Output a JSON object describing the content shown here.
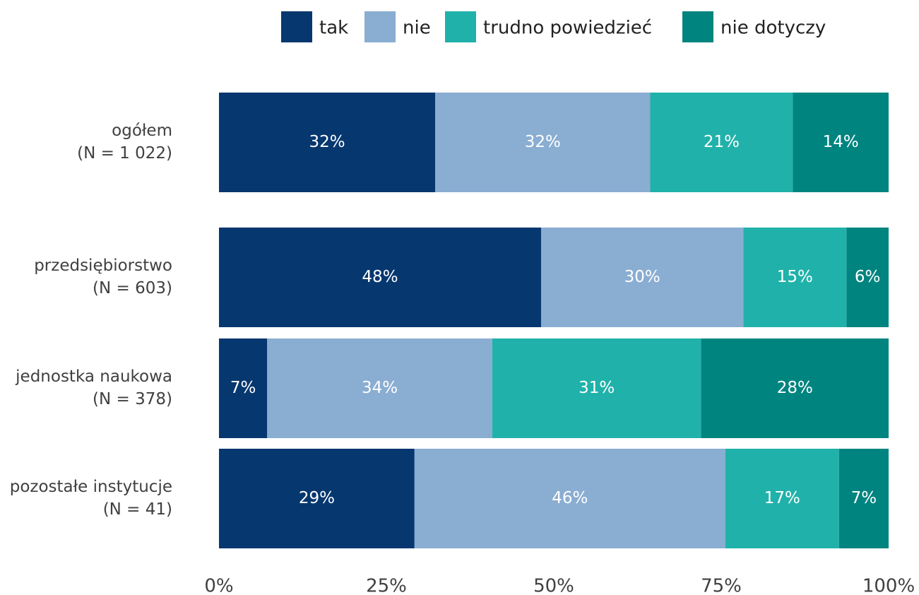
{
  "chart_data": {
    "type": "stacked_bar_horizontal",
    "categories": [
      "ogółem",
      "przedsiębiorstwo",
      "jednostka naukowa",
      "pozostałe instytucje"
    ],
    "sample_sizes": [
      "(N = 1 022)",
      "(N = 603)",
      "(N = 378)",
      "(N = 41)"
    ],
    "series": [
      {
        "name": "tak",
        "color": "#06376f",
        "values": [
          32.3,
          48.1,
          7.2,
          29.2
        ],
        "value_labels": [
          "32%",
          "48%",
          "7%",
          "29%"
        ]
      },
      {
        "name": "nie",
        "color": "#8aadd2",
        "values": [
          32.1,
          30.2,
          33.6,
          46.4
        ],
        "value_labels": [
          "32%",
          "30%",
          "34%",
          "46%"
        ]
      },
      {
        "name": "trudno powiedzieć",
        "color": "#20b2aa",
        "values": [
          21.3,
          15.4,
          31.2,
          17.0
        ],
        "value_labels": [
          "21%",
          "15%",
          "31%",
          "17%"
        ]
      },
      {
        "name": "nie dotyczy",
        "color": "#00847f",
        "values": [
          14.3,
          6.3,
          28.0,
          7.4
        ],
        "value_labels": [
          "14%",
          "6%",
          "28%",
          "7%"
        ]
      }
    ],
    "xlim": [
      0,
      100
    ],
    "xticks": [
      {
        "value": 0,
        "label": "0%"
      },
      {
        "value": 25,
        "label": "25%"
      },
      {
        "value": 50,
        "label": "50%"
      },
      {
        "value": 75,
        "label": "75%"
      },
      {
        "value": 100,
        "label": "100%"
      }
    ],
    "legend": "top"
  }
}
